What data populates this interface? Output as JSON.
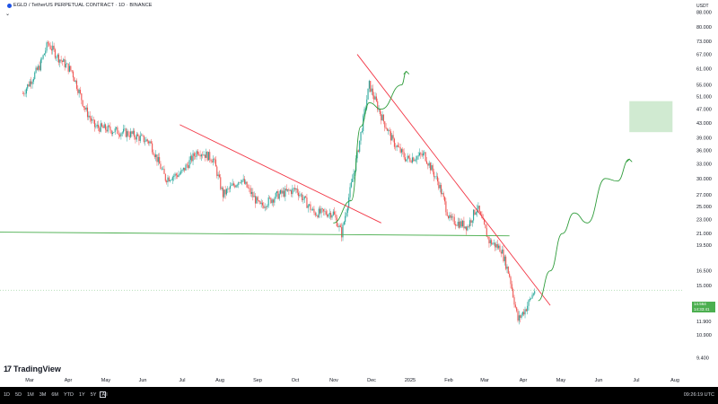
{
  "header": {
    "symbol_title": "EGLD / TetherUS PERPETUAL CONTRACT · 1D · BINANCE",
    "indicator_toggle": "⌄",
    "currency": "USDT"
  },
  "bottom_bar": {
    "timeframes": [
      "1D",
      "5D",
      "1M",
      "3M",
      "6M",
      "YTD",
      "1Y",
      "5Y",
      "All"
    ],
    "clock": "09:26:19 UTC"
  },
  "branding": {
    "logo_text": "TradingView",
    "logo_mark": "17"
  },
  "price_badge": {
    "price": "14.564",
    "countdown": "14:33:41"
  },
  "colors": {
    "up": "#26a69a",
    "down": "#ef5350",
    "trendline": "#f23645",
    "support": "#4caf50",
    "projection": "#2e9c3a",
    "target_zone": "#c8e6c9"
  },
  "chart_data": {
    "type": "candlestick",
    "xlabels": [
      "Mar",
      "Apr",
      "May",
      "Jun",
      "Jul",
      "Aug",
      "Sep",
      "Oct",
      "Nov",
      "Dec",
      "2025",
      "Feb",
      "Mar",
      "Apr",
      "May",
      "Jun",
      "Jul",
      "Aug"
    ],
    "yticks": [
      9.4,
      10.9,
      11.9,
      12.9,
      15.0,
      16.5,
      19.5,
      21.0,
      23.0,
      25.0,
      27.0,
      30.0,
      33.0,
      36.0,
      39.0,
      43.0,
      47.0,
      51.0,
      55.0,
      61.0,
      67.0,
      73.0,
      80.0,
      88.0
    ],
    "ytick_labels": [
      "9.400",
      "10.900",
      "11.900",
      "12.900",
      "15.000",
      "16.500",
      "19.500",
      "21.000",
      "23.000",
      "25.000",
      "27.000",
      "30.000",
      "33.000",
      "36.000",
      "39.000",
      "43.000",
      "47.000",
      "51.000",
      "55.000",
      "61.000",
      "67.000",
      "73.000",
      "80.000",
      "88.000"
    ],
    "y_scale": "log",
    "ylim": [
      9.0,
      92.0
    ],
    "last_price": 14.564,
    "price_path": [
      [
        "2024-02-20",
        52
      ],
      [
        "2024-03-05",
        62
      ],
      [
        "2024-03-12",
        72
      ],
      [
        "2024-03-20",
        66
      ],
      [
        "2024-04-01",
        60
      ],
      [
        "2024-04-12",
        47
      ],
      [
        "2024-04-20",
        42
      ],
      [
        "2024-05-05",
        41
      ],
      [
        "2024-05-20",
        40
      ],
      [
        "2024-06-05",
        38
      ],
      [
        "2024-06-18",
        30
      ],
      [
        "2024-07-01",
        31
      ],
      [
        "2024-07-15",
        36
      ],
      [
        "2024-07-28",
        34
      ],
      [
        "2024-08-05",
        27
      ],
      [
        "2024-08-20",
        30
      ],
      [
        "2024-09-05",
        25
      ],
      [
        "2024-09-20",
        27
      ],
      [
        "2024-10-05",
        28
      ],
      [
        "2024-10-20",
        24
      ],
      [
        "2024-11-05",
        24
      ],
      [
        "2024-11-12",
        21
      ],
      [
        "2024-11-25",
        35
      ],
      [
        "2024-12-05",
        55
      ],
      [
        "2024-12-15",
        45
      ],
      [
        "2024-12-25",
        38
      ],
      [
        "2025-01-05",
        34
      ],
      [
        "2025-01-20",
        35
      ],
      [
        "2025-02-01",
        29
      ],
      [
        "2025-02-10",
        23
      ],
      [
        "2025-02-25",
        22
      ],
      [
        "2025-03-05",
        25
      ],
      [
        "2025-03-15",
        20
      ],
      [
        "2025-03-25",
        19
      ],
      [
        "2025-04-01",
        16
      ],
      [
        "2025-04-08",
        12
      ],
      [
        "2025-04-15",
        13
      ],
      [
        "2025-04-22",
        14.564
      ]
    ],
    "drawings": {
      "support_line": {
        "color": "support",
        "from": [
          "2024-02-01",
          21.2
        ],
        "to": [
          "2025-04-01",
          20.7
        ]
      },
      "trendline_1": {
        "color": "trendline",
        "from": [
          "2024-06-30",
          42.5
        ],
        "to": [
          "2024-12-15",
          22.5
        ]
      },
      "trendline_2": {
        "color": "trendline",
        "from": [
          "2024-11-25",
          67
        ],
        "to": [
          "2025-05-05",
          13.2
        ]
      },
      "target_zone": {
        "from": "2025-07-10",
        "to": "2025-08-15",
        "ymin": 40.5,
        "ymax": 49.5
      },
      "projection_1": [
        [
          "2024-11-05",
          22.5
        ],
        [
          "2024-11-20",
          26
        ],
        [
          "2024-11-28",
          42
        ],
        [
          "2024-12-05",
          49
        ],
        [
          "2024-12-15",
          47
        ],
        [
          "2025-01-01",
          55
        ],
        [
          "2025-01-05",
          60
        ]
      ],
      "projection_2": [
        [
          "2025-04-25",
          13.6
        ],
        [
          "2025-05-05",
          16.5
        ],
        [
          "2025-05-15",
          21
        ],
        [
          "2025-05-25",
          24
        ],
        [
          "2025-06-05",
          22.5
        ],
        [
          "2025-06-20",
          30
        ],
        [
          "2025-06-30",
          29.5
        ],
        [
          "2025-07-10",
          34
        ]
      ]
    }
  }
}
